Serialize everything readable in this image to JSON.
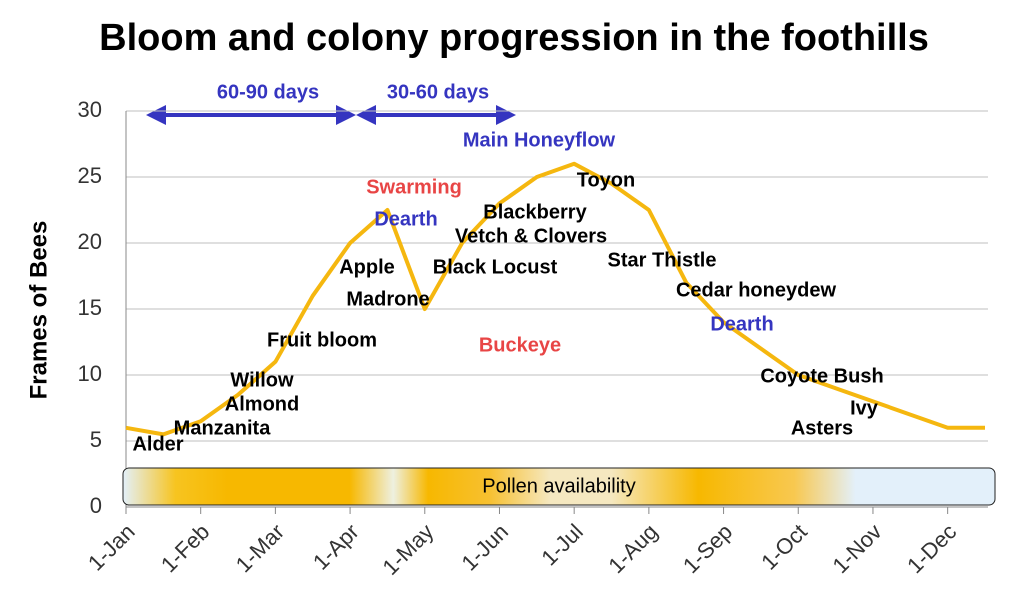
{
  "chart_data": {
    "type": "line",
    "title": "Bloom and colony progression in the foothills",
    "y_label": "Frames of Bees",
    "categories": [
      "1-Jan",
      null,
      "1-Feb",
      null,
      "1-Mar",
      null,
      "1-Apr",
      null,
      "1-May",
      null,
      "1-Jun",
      null,
      "1-Jul",
      null,
      "1-Aug",
      null,
      "1-Sep",
      null,
      "1-Oct",
      null,
      "1-Nov",
      null,
      "1-Dec",
      null
    ],
    "values": [
      6,
      5.5,
      6.5,
      8.5,
      11,
      16,
      20,
      22.5,
      15,
      20,
      23,
      25,
      26,
      24.5,
      22.5,
      17,
      14,
      12,
      10,
      9,
      8,
      7,
      6,
      6
    ],
    "color": "#f5b70f",
    "ylim": [
      0,
      30
    ],
    "yticks": [
      0,
      5,
      10,
      15,
      20,
      25,
      30
    ],
    "grid": true,
    "range_labels": [
      "60-90 days",
      "30-60 days"
    ],
    "band_label": "Pollen availability",
    "annotations": [
      {
        "text": "Alder",
        "color": "#000000"
      },
      {
        "text": "Manzanita",
        "color": "#000000"
      },
      {
        "text": "Almond",
        "color": "#000000"
      },
      {
        "text": "Willow",
        "color": "#000000"
      },
      {
        "text": "Fruit bloom",
        "color": "#000000"
      },
      {
        "text": "Apple",
        "color": "#000000"
      },
      {
        "text": "Madrone",
        "color": "#000000"
      },
      {
        "text": "Swarming",
        "color": "#e84545"
      },
      {
        "text": "Dearth",
        "color": "#3535c0"
      },
      {
        "text": "Black Locust",
        "color": "#000000"
      },
      {
        "text": "Blackberry",
        "color": "#000000"
      },
      {
        "text": "Vetch & Clovers",
        "color": "#000000"
      },
      {
        "text": "Main Honeyflow",
        "color": "#3535c0"
      },
      {
        "text": "Toyon",
        "color": "#000000"
      },
      {
        "text": "Buckeye",
        "color": "#e84545"
      },
      {
        "text": "Star Thistle",
        "color": "#000000"
      },
      {
        "text": "Cedar honeydew",
        "color": "#000000"
      },
      {
        "text": "Dearth",
        "color": "#3535c0"
      },
      {
        "text": "Coyote Bush",
        "color": "#000000"
      },
      {
        "text": "Ivy",
        "color": "#000000"
      },
      {
        "text": "Asters",
        "color": "#000000"
      }
    ]
  }
}
